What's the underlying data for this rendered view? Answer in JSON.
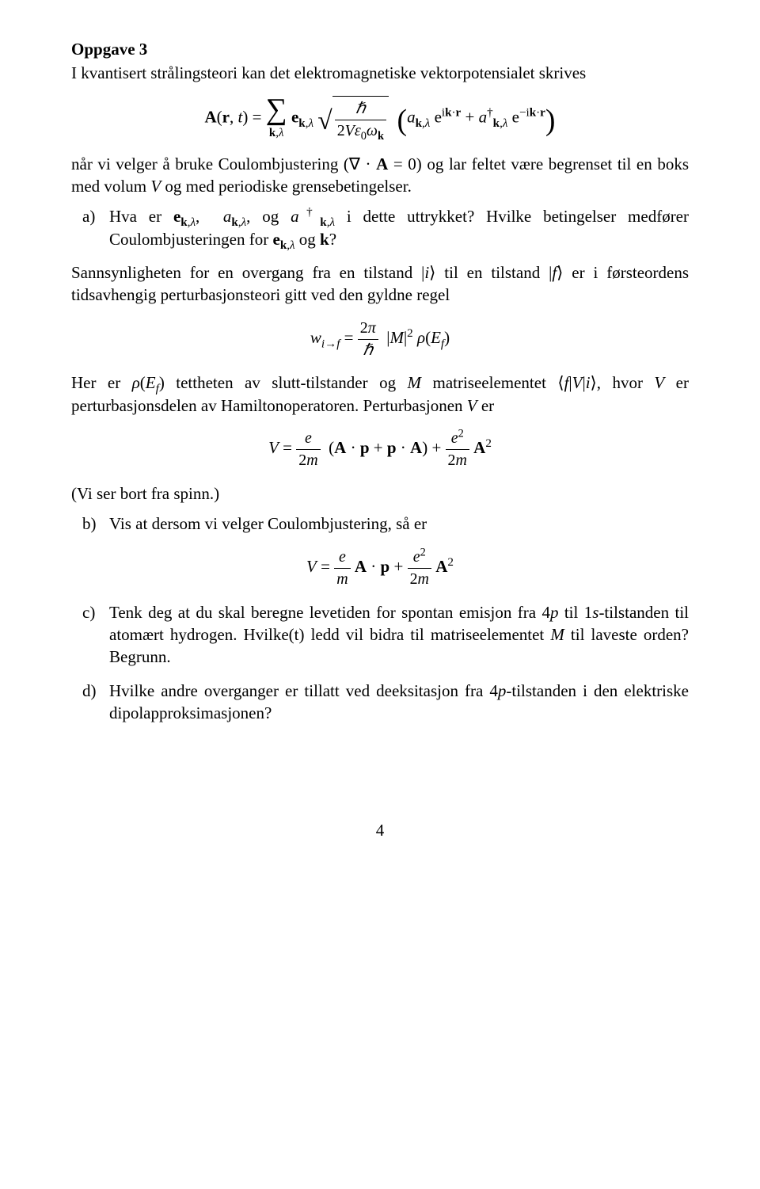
{
  "heading": "Oppgave 3",
  "intro": "I kvantisert strålingsteori kan det elektromagnetiske vektorpotensialet skrives",
  "after_eq1_a": "når vi velger å bruke Coulombjustering (",
  "after_eq1_b": ") og lar feltet være begrenset til en boks med volum ",
  "after_eq1_c": " og med periodiske grensebetingelser.",
  "a_label": "a)",
  "a_text1": "Hva er ",
  "a_text2": " i dette uttrykket?  Hvilke betingelser medfører Coulombjusteringen for ",
  "a_text3": " og ",
  "a_text4": "?",
  "para2a": "Sannsynligheten for en overgang fra en tilstand ",
  "para2b": " til en tilstand ",
  "para2c": " er i førsteordens tidsavhengig perturbasjonsteori gitt ved den gyldne regel",
  "para3a": "Her er ",
  "para3b": " tettheten av slutt-tilstander og ",
  "para3c": " matriseelementet ",
  "para3d": ", hvor ",
  "para3e": " er perturbasjonsdelen av Hamiltonoperatoren. Perturbasjonen ",
  "para3f": " er",
  "spin_note": "(Vi ser bort fra spinn.)",
  "b_label": "b)",
  "b_text": "Vis at dersom vi velger Coulombjustering, så er",
  "c_label": "c)",
  "c_text1": "Tenk deg at du skal beregne levetiden for spontan emisjon fra ",
  "c_text2": " til ",
  "c_text3": "-tilstanden til atomært hydrogen. Hvilke(t) ledd vil bidra til matriseelementet ",
  "c_text4": " til laveste orden? Begrunn.",
  "d_label": "d)",
  "d_text1": "Hvilke andre overganger er tillatt ved deeksitasjon fra ",
  "d_text2": "-tilstanden i den elektriske dipolapproksimasjonen?",
  "pagenum": "4"
}
